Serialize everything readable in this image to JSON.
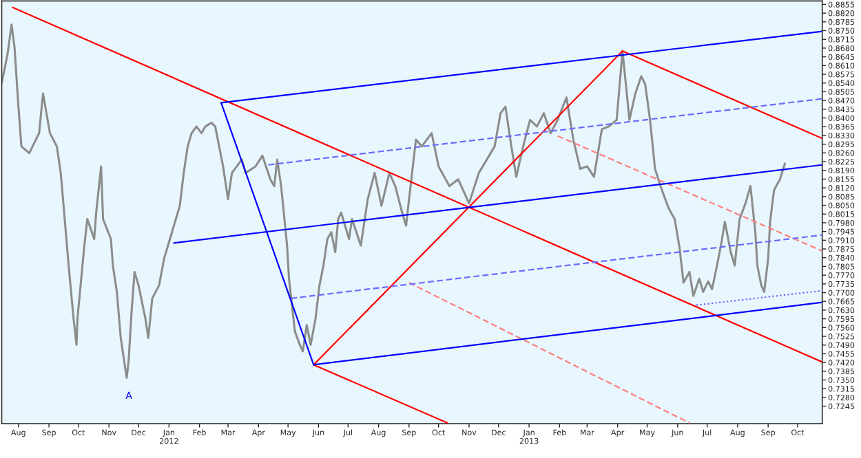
{
  "chart_data": {
    "type": "line",
    "xlim": [
      "2011-07-15",
      "2013-10-26"
    ],
    "ylim": [
      0.7175,
      0.8869
    ],
    "xticks": [
      {
        "value": "2011-08-01",
        "label": "Aug"
      },
      {
        "value": "2011-09-01",
        "label": "Sep"
      },
      {
        "value": "2011-10-01",
        "label": "Oct"
      },
      {
        "value": "2011-11-01",
        "label": "Nov"
      },
      {
        "value": "2011-12-01",
        "label": "Dec"
      },
      {
        "value": "2012-01-01",
        "label": "Jan\n2012"
      },
      {
        "value": "2012-02-01",
        "label": "Feb"
      },
      {
        "value": "2012-03-01",
        "label": "Mar"
      },
      {
        "value": "2012-04-01",
        "label": "Apr"
      },
      {
        "value": "2012-05-01",
        "label": "May"
      },
      {
        "value": "2012-06-01",
        "label": "Jun"
      },
      {
        "value": "2012-07-01",
        "label": "Jul"
      },
      {
        "value": "2012-08-01",
        "label": "Aug"
      },
      {
        "value": "2012-09-01",
        "label": "Sep"
      },
      {
        "value": "2012-10-01",
        "label": "Oct"
      },
      {
        "value": "2012-11-01",
        "label": "Nov"
      },
      {
        "value": "2012-12-01",
        "label": "Dec"
      },
      {
        "value": "2013-01-01",
        "label": "Jan\n2013"
      },
      {
        "value": "2013-02-01",
        "label": "Feb"
      },
      {
        "value": "2013-03-01",
        "label": "Mar"
      },
      {
        "value": "2013-04-01",
        "label": "Apr"
      },
      {
        "value": "2013-05-01",
        "label": "May"
      },
      {
        "value": "2013-06-01",
        "label": "Jun"
      },
      {
        "value": "2013-07-01",
        "label": "Jul"
      },
      {
        "value": "2013-08-01",
        "label": "Aug"
      },
      {
        "value": "2013-09-01",
        "label": "Sep"
      },
      {
        "value": "2013-10-01",
        "label": "Oct"
      }
    ],
    "yticks": [
      {
        "value": 0.7245,
        "label": "0.7245"
      },
      {
        "value": 0.728,
        "label": "0.7280"
      },
      {
        "value": 0.7315,
        "label": "0.7315"
      },
      {
        "value": 0.735,
        "label": "0.7350"
      },
      {
        "value": 0.7385,
        "label": "0.7385"
      },
      {
        "value": 0.742,
        "label": "0.7420"
      },
      {
        "value": 0.7455,
        "label": "0.7455"
      },
      {
        "value": 0.749,
        "label": "0.7490"
      },
      {
        "value": 0.7525,
        "label": "0.7525"
      },
      {
        "value": 0.756,
        "label": "0.7560"
      },
      {
        "value": 0.7595,
        "label": "0.7595"
      },
      {
        "value": 0.763,
        "label": "0.7630"
      },
      {
        "value": 0.7665,
        "label": "0.7665"
      },
      {
        "value": 0.77,
        "label": "0.7700"
      },
      {
        "value": 0.7735,
        "label": "0.7735"
      },
      {
        "value": 0.777,
        "label": "0.7770"
      },
      {
        "value": 0.7805,
        "label": "0.7805"
      },
      {
        "value": 0.784,
        "label": "0.7840"
      },
      {
        "value": 0.7875,
        "label": "0.7875"
      },
      {
        "value": 0.791,
        "label": "0.7910"
      },
      {
        "value": 0.7945,
        "label": "0.7945"
      },
      {
        "value": 0.798,
        "label": "0.7980"
      },
      {
        "value": 0.8015,
        "label": "0.8015"
      },
      {
        "value": 0.805,
        "label": "0.8050"
      },
      {
        "value": 0.8085,
        "label": "0.8085"
      },
      {
        "value": 0.812,
        "label": "0.8120"
      },
      {
        "value": 0.8155,
        "label": "0.8155"
      },
      {
        "value": 0.819,
        "label": "0.8190"
      },
      {
        "value": 0.8225,
        "label": "0.8225"
      },
      {
        "value": 0.826,
        "label": "0.8260"
      },
      {
        "value": 0.8295,
        "label": "0.8295"
      },
      {
        "value": 0.833,
        "label": "0.8330"
      },
      {
        "value": 0.8365,
        "label": "0.8365"
      },
      {
        "value": 0.84,
        "label": "0.8400"
      },
      {
        "value": 0.8435,
        "label": "0.8435"
      },
      {
        "value": 0.847,
        "label": "0.8470"
      },
      {
        "value": 0.8505,
        "label": "0.8505"
      },
      {
        "value": 0.854,
        "label": "0.8540"
      },
      {
        "value": 0.8575,
        "label": "0.8575"
      },
      {
        "value": 0.861,
        "label": "0.8610"
      },
      {
        "value": 0.8645,
        "label": "0.8645"
      },
      {
        "value": 0.868,
        "label": "0.8680"
      },
      {
        "value": 0.8715,
        "label": "0.8715"
      },
      {
        "value": 0.875,
        "label": "0.8750"
      },
      {
        "value": 0.8785,
        "label": "0.8785"
      },
      {
        "value": 0.882,
        "label": "0.8820"
      },
      {
        "value": 0.8855,
        "label": "0.8855"
      }
    ],
    "annotations": [
      "A"
    ],
    "series": [
      {
        "color": "#8c8c8c",
        "x": [
          "2011-07-15",
          "2011-07-21",
          "2011-07-25",
          "2011-07-28",
          "2011-08-01",
          "2011-08-04",
          "2011-08-12",
          "2011-08-22",
          "2011-08-26",
          "2011-09-02",
          "2011-09-09",
          "2011-09-13",
          "2011-09-17",
          "2011-09-21",
          "2011-09-26",
          "2011-09-29",
          "2011-09-30",
          "2011-10-07",
          "2011-10-10",
          "2011-10-17",
          "2011-10-19",
          "2011-10-24",
          "2011-10-26",
          "2011-11-03",
          "2011-11-05",
          "2011-11-09",
          "2011-11-13",
          "2011-11-16",
          "2011-11-19",
          "2011-11-21",
          "2011-11-24",
          "2011-11-27",
          "2011-12-01",
          "2011-12-08",
          "2011-12-11",
          "2011-12-15",
          "2011-12-22",
          "2011-12-27",
          "2012-01-02",
          "2012-01-08",
          "2012-01-12",
          "2012-01-16",
          "2012-01-20",
          "2012-01-24",
          "2012-01-29",
          "2012-02-03",
          "2012-02-07",
          "2012-02-13",
          "2012-02-17",
          "2012-02-21",
          "2012-02-25",
          "2012-03-01",
          "2012-03-05",
          "2012-03-15",
          "2012-03-19",
          "2012-03-29",
          "2012-04-05",
          "2012-04-13",
          "2012-04-17",
          "2012-04-20",
          "2012-04-24",
          "2012-04-30",
          "2012-05-02",
          "2012-05-05",
          "2012-05-08",
          "2012-05-13",
          "2012-05-16",
          "2012-05-20",
          "2012-05-24",
          "2012-05-29",
          "2012-06-02",
          "2012-06-06",
          "2012-06-10",
          "2012-06-14",
          "2012-06-18",
          "2012-06-21",
          "2012-06-24",
          "2012-06-28",
          "2012-07-02",
          "2012-07-05",
          "2012-07-14",
          "2012-07-21",
          "2012-07-28",
          "2012-08-04",
          "2012-08-12",
          "2012-08-18",
          "2012-08-25",
          "2012-08-29",
          "2012-09-01",
          "2012-09-08",
          "2012-09-14",
          "2012-09-24",
          "2012-10-01",
          "2012-10-12",
          "2012-10-21",
          "2012-11-01",
          "2012-11-11",
          "2012-11-19",
          "2012-11-27",
          "2012-12-03",
          "2012-12-08",
          "2012-12-14",
          "2012-12-19",
          "2012-12-26",
          "2013-01-02",
          "2013-01-09",
          "2013-01-16",
          "2013-01-23",
          "2013-01-30",
          "2013-02-08",
          "2013-02-15",
          "2013-02-22",
          "2013-03-01",
          "2013-03-08",
          "2013-03-16",
          "2013-03-23",
          "2013-03-31",
          "2013-04-06",
          "2013-04-13",
          "2013-04-19",
          "2013-04-25",
          "2013-04-29",
          "2013-05-04",
          "2013-05-09",
          "2013-05-16",
          "2013-05-23",
          "2013-05-29",
          "2013-06-03",
          "2013-06-07",
          "2013-06-13",
          "2013-06-17",
          "2013-06-23",
          "2013-06-27",
          "2013-07-02",
          "2013-07-06",
          "2013-07-11",
          "2013-07-15",
          "2013-07-19",
          "2013-07-25",
          "2013-07-29",
          "2013-08-03",
          "2013-08-09",
          "2013-08-14",
          "2013-08-19",
          "2013-08-21",
          "2013-08-25",
          "2013-08-28",
          "2013-09-01",
          "2013-09-03",
          "2013-09-07",
          "2013-09-13",
          "2013-09-18"
        ],
        "values": [
          0.854,
          0.8657,
          0.8774,
          0.8684,
          0.8445,
          0.8286,
          0.8259,
          0.8339,
          0.8498,
          0.8339,
          0.8286,
          0.818,
          0.7995,
          0.7809,
          0.7597,
          0.7491,
          0.7597,
          0.7889,
          0.7995,
          0.7915,
          0.8021,
          0.8206,
          0.7995,
          0.7915,
          0.7809,
          0.7703,
          0.7518,
          0.7438,
          0.7359,
          0.7427,
          0.7624,
          0.7783,
          0.773,
          0.7597,
          0.7518,
          0.7677,
          0.773,
          0.7836,
          0.7915,
          0.7995,
          0.8048,
          0.818,
          0.8286,
          0.8339,
          0.8366,
          0.8339,
          0.8366,
          0.8381,
          0.8366,
          0.8286,
          0.8206,
          0.8074,
          0.818,
          0.8233,
          0.818,
          0.8206,
          0.8249,
          0.8154,
          0.8127,
          0.8233,
          0.8127,
          0.7889,
          0.7756,
          0.765,
          0.7544,
          0.7491,
          0.7465,
          0.757,
          0.7491,
          0.7597,
          0.773,
          0.7809,
          0.7915,
          0.7942,
          0.7862,
          0.7995,
          0.8021,
          0.7968,
          0.7915,
          0.7995,
          0.7889,
          0.8074,
          0.818,
          0.8048,
          0.818,
          0.8127,
          0.8021,
          0.7968,
          0.8074,
          0.8313,
          0.8286,
          0.8339,
          0.8206,
          0.8127,
          0.8154,
          0.8058,
          0.818,
          0.8233,
          0.8286,
          0.8419,
          0.8445,
          0.8286,
          0.8164,
          0.8286,
          0.8392,
          0.8366,
          0.8419,
          0.8339,
          0.8392,
          0.8482,
          0.8313,
          0.8196,
          0.8206,
          0.8164,
          0.8355,
          0.8366,
          0.8392,
          0.8668,
          0.8392,
          0.8498,
          0.8567,
          0.8535,
          0.8392,
          0.8196,
          0.8111,
          0.8037,
          0.7995,
          0.7878,
          0.774,
          0.7783,
          0.7687,
          0.7756,
          0.7703,
          0.7745,
          0.7714,
          0.7809,
          0.7889,
          0.7984,
          0.7862,
          0.7809,
          0.7995,
          0.8058,
          0.8127,
          0.7942,
          0.7809,
          0.773,
          0.7703,
          0.7836,
          0.7984,
          0.8111,
          0.8154,
          0.8217
        ]
      },
      {
        "color": "#ff0000",
        "line_style": "solid",
        "x": [
          "2011-07-26",
          "2013-10-26"
        ],
        "values": [
          0.8843,
          0.7422
        ]
      },
      {
        "color": "#ff0000",
        "line_style": "solid",
        "x": [
          "2012-05-27",
          "2012-10-10"
        ],
        "values": [
          0.7411,
          0.7178
        ]
      },
      {
        "color": "#ff0000",
        "line_style": "solid",
        "x": [
          "2012-05-27",
          "2013-04-06"
        ],
        "values": [
          0.7411,
          0.8668
        ]
      },
      {
        "color": "#ff0000",
        "line_style": "solid",
        "x": [
          "2013-04-06",
          "2013-10-26"
        ],
        "values": [
          0.8668,
          0.8318
        ]
      },
      {
        "color": "#ff8080",
        "line_style": "dashed",
        "x": [
          "2013-01-30",
          "2013-10-26"
        ],
        "values": [
          0.8328,
          0.7867
        ]
      },
      {
        "color": "#ff8080",
        "line_style": "dashed",
        "x": [
          "2012-09-01",
          "2013-06-13"
        ],
        "values": [
          0.774,
          0.7178
        ]
      },
      {
        "color": "#0000ff",
        "line_style": "solid",
        "x": [
          "2012-02-23",
          "2012-05-27"
        ],
        "values": [
          0.8461,
          0.7411
        ]
      },
      {
        "color": "#0000ff",
        "line_style": "solid",
        "x": [
          "2012-02-23",
          "2013-10-26"
        ],
        "values": [
          0.8461,
          0.8747
        ]
      },
      {
        "color": "#0000ff",
        "line_style": "solid",
        "x": [
          "2012-01-06",
          "2013-10-26"
        ],
        "values": [
          0.7899,
          0.8212
        ]
      },
      {
        "color": "#0000ff",
        "line_style": "solid",
        "x": [
          "2012-05-27",
          "2013-10-26"
        ],
        "values": [
          0.7411,
          0.7661
        ]
      },
      {
        "color": "#6b6bff",
        "line_style": "dashed",
        "x": [
          "2012-04-11",
          "2013-10-26"
        ],
        "values": [
          0.8212,
          0.8477
        ]
      },
      {
        "color": "#6b6bff",
        "line_style": "dashed",
        "x": [
          "2012-05-04",
          "2013-10-26"
        ],
        "values": [
          0.7677,
          0.7931
        ]
      },
      {
        "color": "#6b6bff",
        "line_style": "dotted",
        "x": [
          "2013-06-20",
          "2013-10-26"
        ],
        "values": [
          0.765,
          0.7708
        ]
      }
    ]
  }
}
